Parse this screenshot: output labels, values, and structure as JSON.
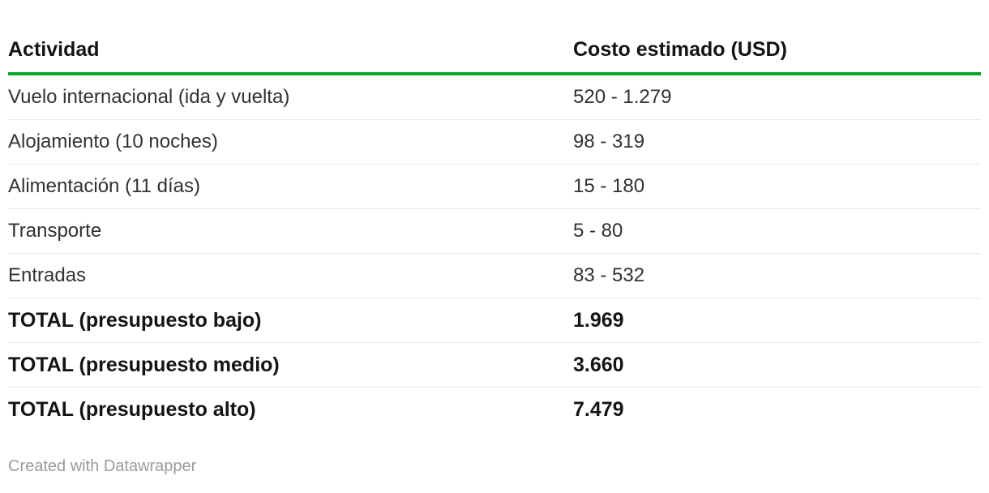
{
  "chart_data": {
    "type": "table",
    "title": "",
    "columns": [
      "Actividad",
      "Costo estimado (USD)"
    ],
    "rows": [
      [
        "Vuelo internacional (ida y vuelta)",
        "520 - 1.279"
      ],
      [
        "Alojamiento (10 noches)",
        "98 - 319"
      ],
      [
        "Alimentación (11 días)",
        "15 - 180"
      ],
      [
        "Transporte",
        "5 - 80"
      ],
      [
        "Entradas",
        "83 - 532"
      ],
      [
        "TOTAL (presupuesto bajo)",
        "1.969"
      ],
      [
        "TOTAL (presupuesto medio)",
        "3.660"
      ],
      [
        "TOTAL (presupuesto alto)",
        "7.479"
      ]
    ],
    "bold_rows": [
      5,
      6,
      7
    ],
    "layout_hints": {
      "header_rule_visible": true,
      "row_dividers": true,
      "last_row_divider": false
    }
  },
  "footer": {
    "attribution": "Created with Datawrapper"
  },
  "colors": {
    "header_rule_green": "#0ba629",
    "row_divider": "#e9e9e9",
    "body_text": "#313136",
    "bold_text": "#141414",
    "footer_text": "#9b9b9b",
    "background": "#ffffff"
  }
}
